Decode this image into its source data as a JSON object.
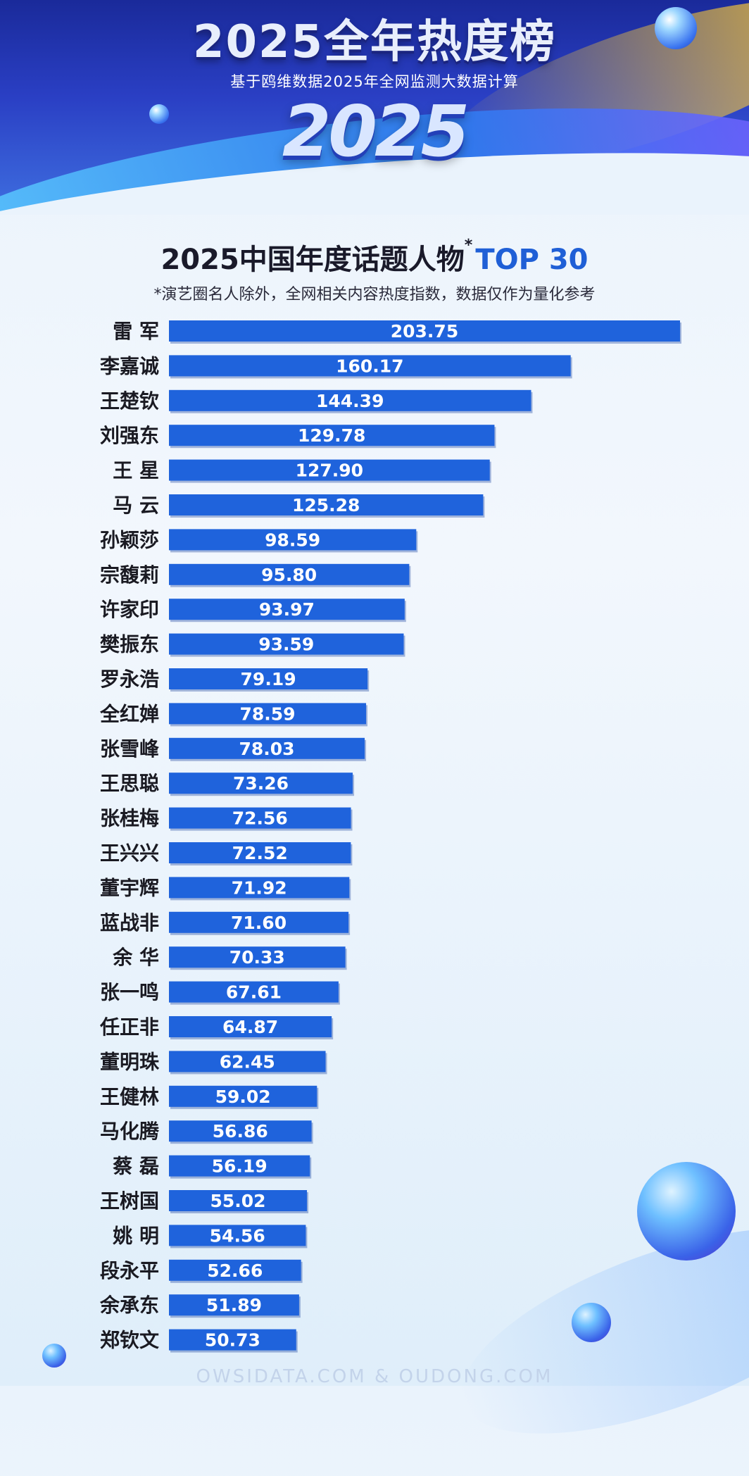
{
  "banner": {
    "title": "2025全年热度榜",
    "subtitle": "基于鸥维数据2025年全网监测大数据计算",
    "year": "2025"
  },
  "chart_data": {
    "type": "bar",
    "orientation": "horizontal",
    "title": "2025中国年度话题人物",
    "title_suffix": "TOP 30",
    "note": "*演艺圈名人除外，全网相关内容热度指数，数据仅作为量化参考",
    "categories": [
      "雷 军",
      "李嘉诚",
      "王楚钦",
      "刘强东",
      "王 星",
      "马 云",
      "孙颖莎",
      "宗馥莉",
      "许家印",
      "樊振东",
      "罗永浩",
      "全红婵",
      "张雪峰",
      "王思聪",
      "张桂梅",
      "王兴兴",
      "董宇辉",
      "蓝战非",
      "余 华",
      "张一鸣",
      "任正非",
      "董明珠",
      "王健林",
      "马化腾",
      "蔡 磊",
      "王树国",
      "姚 明",
      "段永平",
      "余承东",
      "郑钦文"
    ],
    "values": [
      203.75,
      160.17,
      144.39,
      129.78,
      127.9,
      125.28,
      98.59,
      95.8,
      93.97,
      93.59,
      79.19,
      78.59,
      78.03,
      73.26,
      72.56,
      72.52,
      71.92,
      71.6,
      70.33,
      67.61,
      64.87,
      62.45,
      59.02,
      56.86,
      56.19,
      55.02,
      54.56,
      52.66,
      51.89,
      50.73
    ],
    "value_labels": [
      "203.75",
      "160.17",
      "144.39",
      "129.78",
      "127.90",
      "125.28",
      "98.59",
      "95.80",
      "93.97",
      "93.59",
      "79.19",
      "78.59",
      "78.03",
      "73.26",
      "72.56",
      "72.52",
      "71.92",
      "71.60",
      "70.33",
      "67.61",
      "64.87",
      "62.45",
      "59.02",
      "56.86",
      "56.19",
      "55.02",
      "54.56",
      "52.66",
      "51.89",
      "50.73"
    ],
    "xlim": [
      0,
      203.75
    ],
    "bar_color": "#1f63dc",
    "label_color": "#ffffff",
    "grid": false,
    "legend": "none"
  },
  "footer": {
    "watermark": "OWSIDATA.COM & OUDONG.COM"
  }
}
